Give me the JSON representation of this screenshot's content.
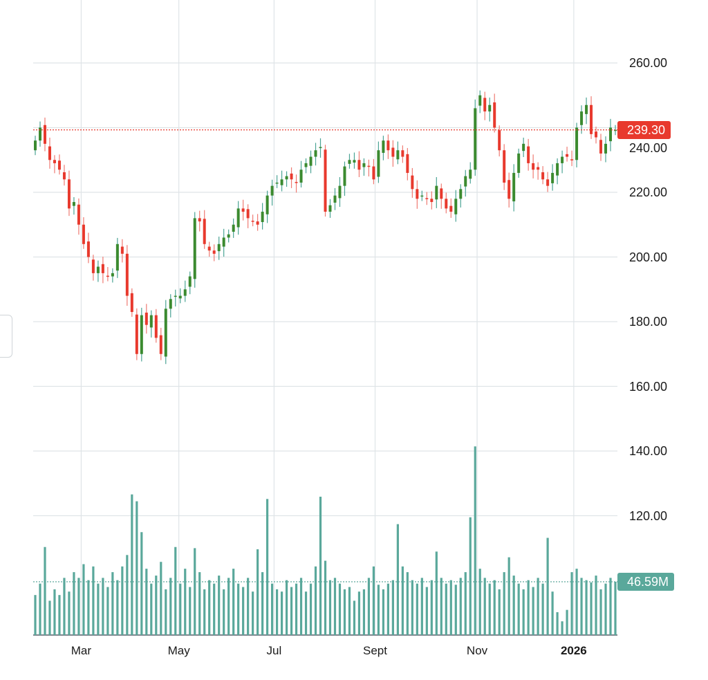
{
  "chart_data": {
    "type": "candlestick",
    "title": "",
    "x_tick_labels": [
      {
        "label": "Mar",
        "index": 9.5,
        "bold": false
      },
      {
        "label": "May",
        "index": 29.7,
        "bold": false
      },
      {
        "label": "Jul",
        "index": 49.4,
        "bold": false
      },
      {
        "label": "Sept",
        "index": 70.3,
        "bold": false
      },
      {
        "label": "Nov",
        "index": 91.4,
        "bold": false
      },
      {
        "label": "2026",
        "index": 111.4,
        "bold": true
      }
    ],
    "y_tick_labels": [
      "260.00",
      "240.00",
      "220.00",
      "200.00",
      "180.00",
      "160.00",
      "140.00",
      "120.00"
    ],
    "y_ticks": [
      260,
      240,
      220,
      200,
      180,
      160,
      140,
      120
    ],
    "price_ylim": [
      113,
      279.5
    ],
    "close": [
      236,
      240,
      235,
      230,
      229,
      227,
      224,
      215,
      217,
      210,
      204,
      200,
      195,
      197,
      195,
      194,
      195,
      204,
      201,
      188,
      183,
      170,
      182,
      179,
      182,
      175,
      170,
      184,
      187,
      188,
      188,
      190,
      194,
      212,
      211,
      204,
      202,
      201,
      204,
      206,
      207,
      210,
      215,
      214,
      212,
      211,
      210,
      214,
      219,
      222,
      223,
      224,
      225,
      224,
      223,
      227,
      229,
      231,
      233,
      234,
      214,
      216,
      219,
      222,
      228,
      230,
      230,
      227,
      229,
      228,
      224,
      233,
      236,
      233,
      231,
      233,
      231,
      226,
      221,
      218,
      219,
      218,
      217,
      222,
      218,
      215,
      214,
      218,
      221,
      225,
      227,
      246,
      250,
      245,
      247,
      240,
      233,
      223,
      218,
      226,
      232,
      235,
      229,
      227,
      227,
      224,
      222,
      226,
      229,
      231,
      231,
      230,
      240,
      245,
      247,
      238,
      237,
      232,
      235,
      240,
      239.3
    ],
    "volume_millions": [
      35,
      45,
      77,
      30,
      40,
      35,
      50,
      38,
      55,
      50,
      62,
      48,
      60,
      45,
      50,
      42,
      55,
      48,
      60,
      70,
      123,
      117,
      90,
      58,
      45,
      52,
      64,
      40,
      50,
      77,
      45,
      58,
      42,
      76,
      55,
      40,
      48,
      45,
      52,
      40,
      50,
      58,
      45,
      42,
      50,
      38,
      75,
      55,
      119,
      45,
      40,
      38,
      48,
      42,
      45,
      50,
      38,
      45,
      60,
      121,
      65,
      48,
      50,
      45,
      40,
      42,
      30,
      38,
      40,
      50,
      60,
      44,
      40,
      45,
      48,
      97,
      60,
      55,
      48,
      45,
      50,
      42,
      48,
      73,
      50,
      45,
      48,
      44,
      50,
      55,
      103,
      165,
      58,
      50,
      45,
      48,
      40,
      55,
      68,
      52,
      45,
      40,
      48,
      42,
      50,
      45,
      85,
      38,
      20,
      12,
      22,
      55,
      58,
      50,
      48,
      46,
      52,
      40,
      45,
      50,
      46.59
    ],
    "last_price": 239.3,
    "last_price_label": "239.30",
    "last_volume_label": "46.59M",
    "colors": {
      "up": "#3b8a2f",
      "down": "#e8392d",
      "volume": "#5aa89b",
      "grid": "#dfe4e7",
      "price_tag": "#e8392d",
      "volume_tag": "#5aa89b"
    }
  }
}
